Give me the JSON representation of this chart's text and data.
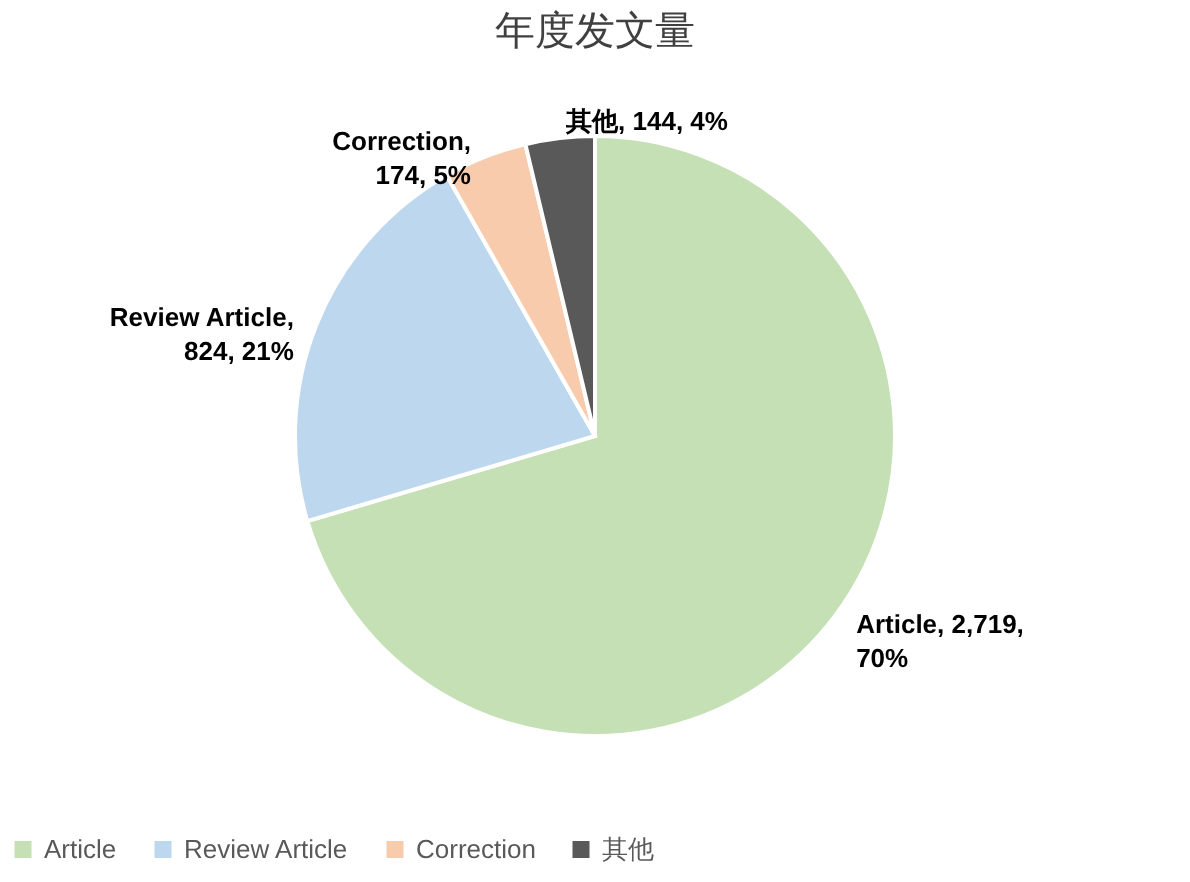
{
  "chart_data": {
    "type": "pie",
    "title": "年度发文量",
    "categories": [
      "Article",
      "Review Article",
      "Correction",
      "其他"
    ],
    "values": [
      2719,
      824,
      174,
      144
    ],
    "colors": [
      "#c5e0b4",
      "#bdd7ee",
      "#f8cbad",
      "#595959"
    ],
    "value_labels": [
      "Article, 2,719, 70%",
      "Review Article, 824, 21%",
      "Correction, 174, 5%",
      "其他, 144, 4%"
    ],
    "legend": "bottom"
  }
}
